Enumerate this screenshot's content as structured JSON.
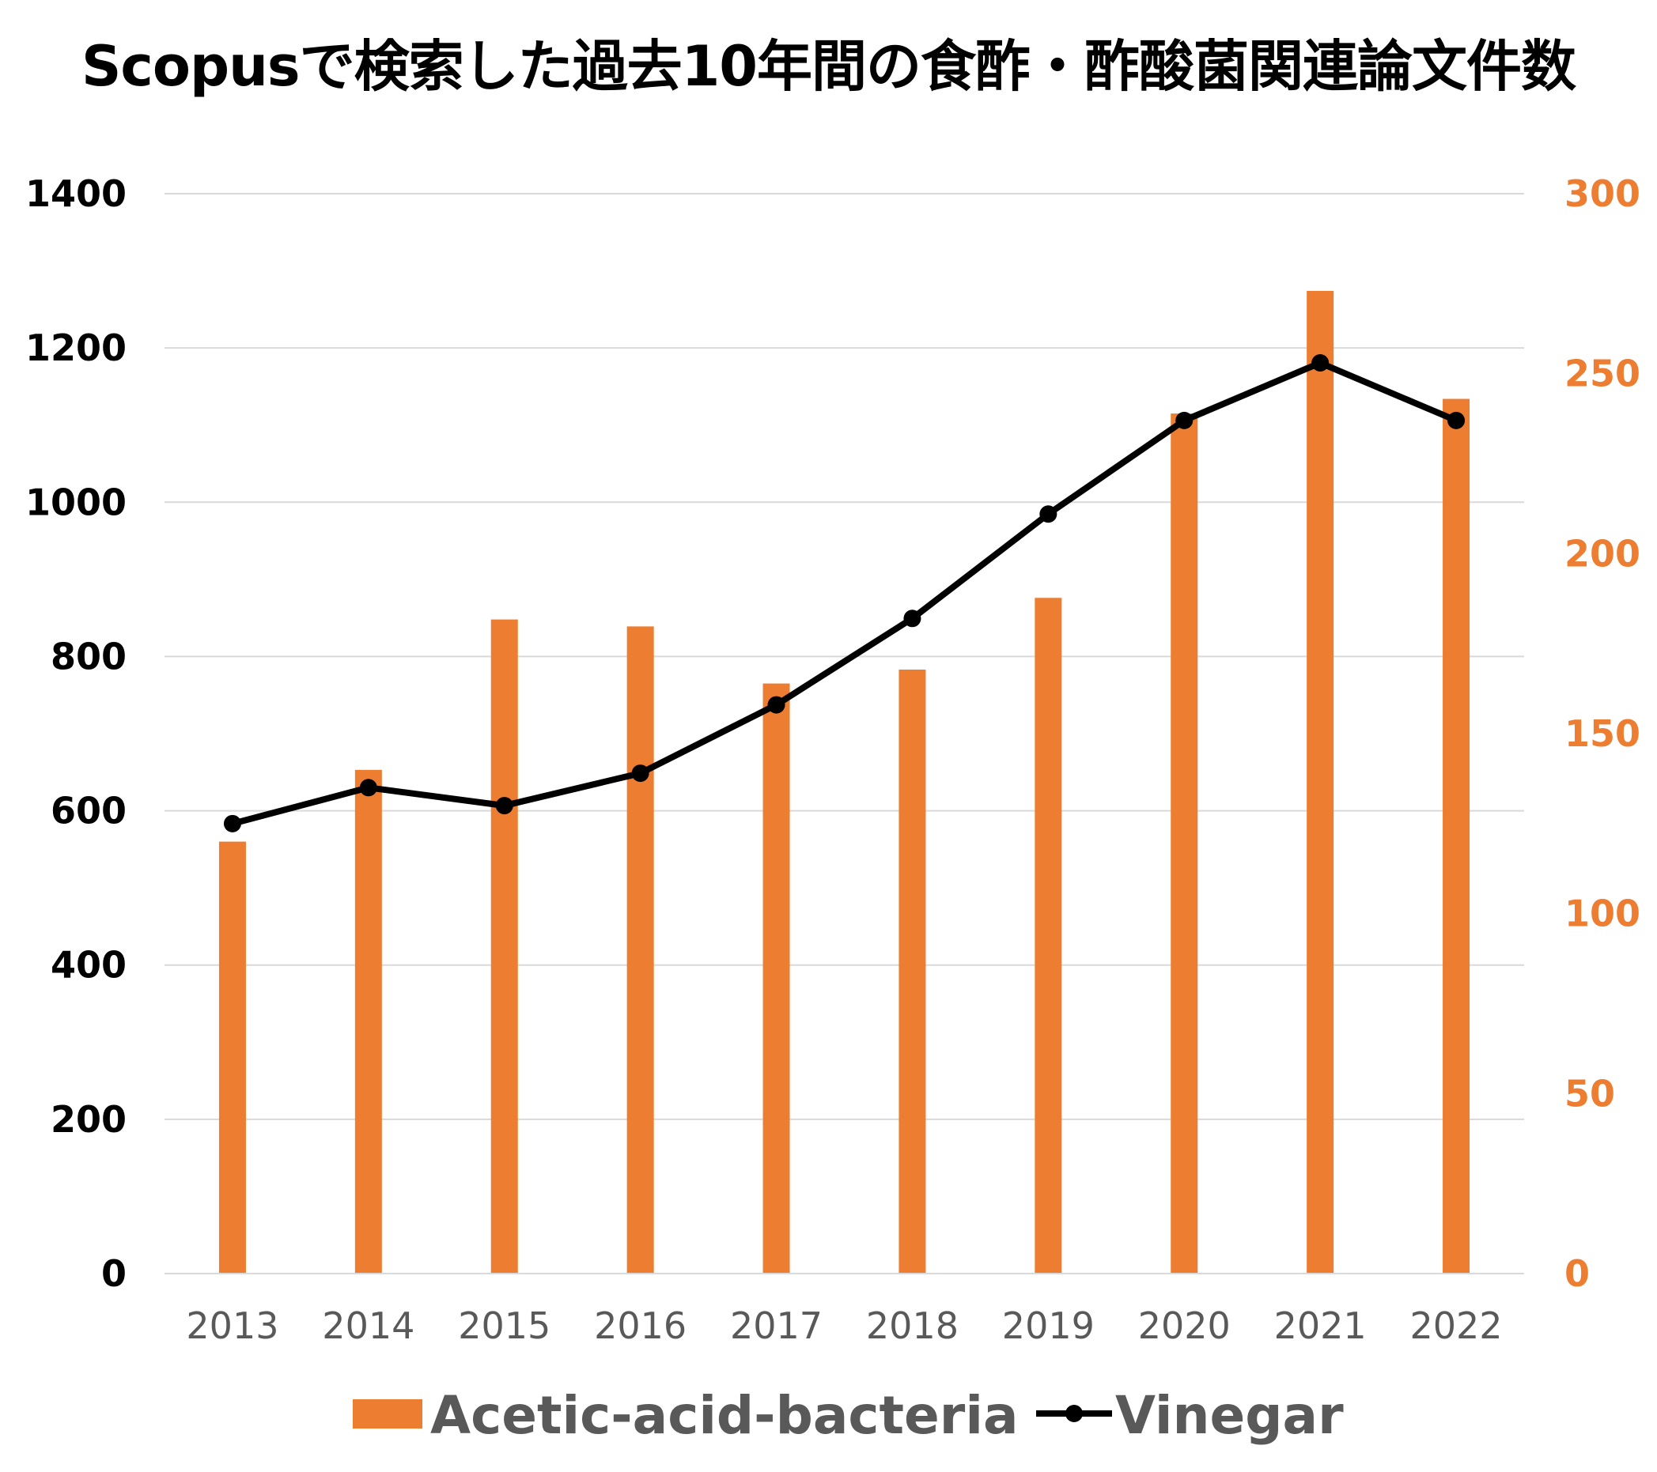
{
  "chart_data": {
    "type": "bar",
    "title": "Scopusで検索した過去10年間の食酢・酢酸菌関連論文件数",
    "categories": [
      "2013",
      "2014",
      "2015",
      "2016",
      "2017",
      "2018",
      "2019",
      "2020",
      "2021",
      "2022"
    ],
    "series": [
      {
        "name": "Acetic-acid-bacteria",
        "type": "bar",
        "axis": "left",
        "color": "#ED7D31",
        "values": [
          560,
          653,
          848,
          839,
          765,
          783,
          876,
          1115,
          1274,
          1134
        ]
      },
      {
        "name": "Vinegar",
        "type": "line",
        "axis": "right",
        "color": "#000000",
        "values": [
          125,
          135,
          130,
          139,
          158,
          182,
          211,
          237,
          253,
          237
        ]
      }
    ],
    "y_left": {
      "min": 0,
      "max": 1400,
      "ticks": [
        "0",
        "200",
        "400",
        "600",
        "800",
        "1000",
        "1200",
        "1400"
      ],
      "color": "#000000"
    },
    "y_right": {
      "min": 0,
      "max": 300,
      "ticks": [
        "0",
        "50",
        "100",
        "150",
        "200",
        "250",
        "300"
      ],
      "color": "#ED7D31"
    },
    "grid": true,
    "gridColor": "#D9D9D9",
    "legend": {
      "position": "bottom",
      "items": [
        "Acetic-acid-bacteria",
        "Vinegar"
      ]
    }
  }
}
